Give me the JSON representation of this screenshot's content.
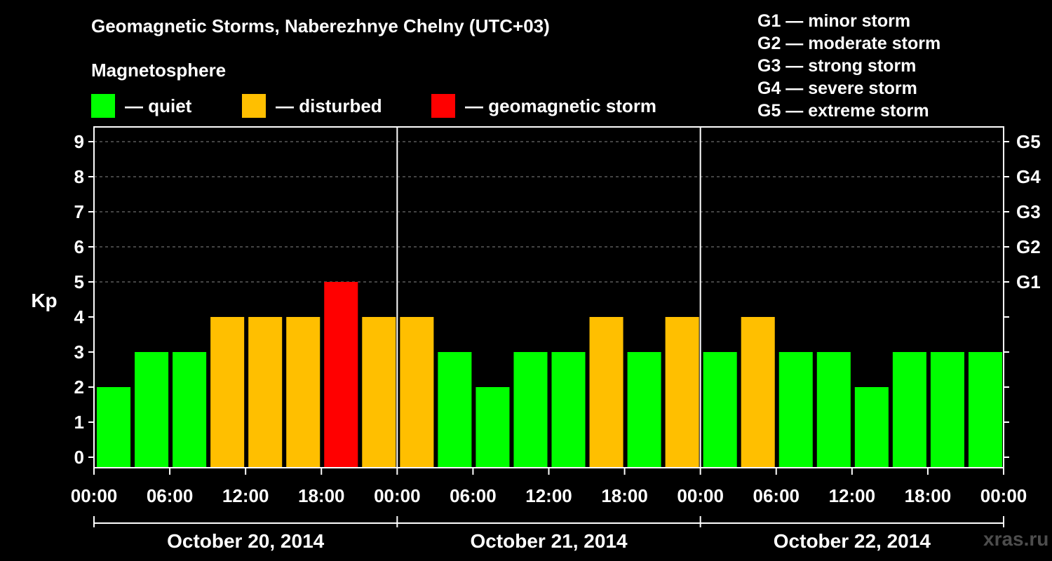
{
  "title": "Geomagnetic Storms, Naberezhnye Chelny (UTC+03)",
  "legend": {
    "heading": "Magnetosphere",
    "items": [
      {
        "label": "— quiet",
        "color": "#00ff00"
      },
      {
        "label": "— disturbed",
        "color": "#ffbf00"
      },
      {
        "label": "— geomagnetic storm",
        "color": "#ff0000"
      }
    ]
  },
  "storm_levels": [
    "G1 — minor storm",
    "G2 — moderate storm",
    "G3 — strong storm",
    "G4 — severe storm",
    "G5 — extreme storm"
  ],
  "watermark": "xras.ru",
  "chart_data": {
    "type": "bar",
    "title": "Geomagnetic Storms, Naberezhnye Chelny (UTC+03)",
    "ylabel": "Kp",
    "ylim": [
      0,
      9
    ],
    "yticks": [
      0,
      1,
      2,
      3,
      4,
      5,
      6,
      7,
      8,
      9
    ],
    "right_axis": [
      {
        "kp": 5,
        "label": "G1"
      },
      {
        "kp": 6,
        "label": "G2"
      },
      {
        "kp": 7,
        "label": "G3"
      },
      {
        "kp": 8,
        "label": "G4"
      },
      {
        "kp": 9,
        "label": "G5"
      }
    ],
    "xtick_labels": [
      "00:00",
      "06:00",
      "12:00",
      "18:00",
      "00:00",
      "06:00",
      "12:00",
      "18:00",
      "00:00",
      "06:00",
      "12:00",
      "18:00",
      "00:00"
    ],
    "days": [
      "October 20, 2014",
      "October 21, 2014",
      "October 22, 2014"
    ],
    "interval_hours": 3,
    "values": [
      2,
      3,
      3,
      4,
      4,
      4,
      5,
      4,
      4,
      3,
      2,
      3,
      3,
      4,
      3,
      4,
      3,
      4,
      3,
      3,
      2,
      3,
      3,
      3
    ],
    "colors": {
      "quiet": "#00ff00",
      "disturbed": "#ffbf00",
      "storm": "#ff0000"
    }
  }
}
